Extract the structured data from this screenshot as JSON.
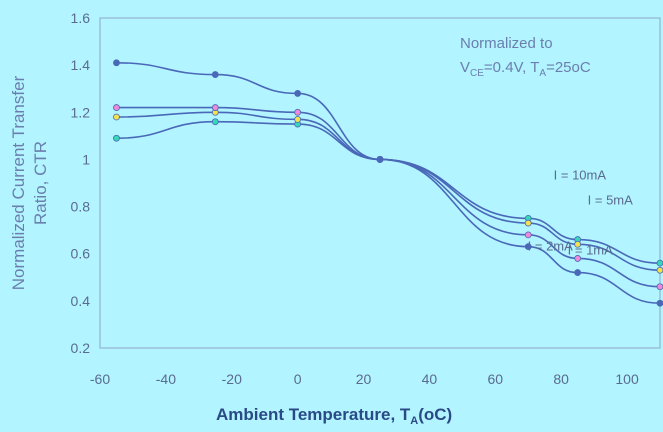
{
  "chart_data": {
    "type": "line",
    "ylabel": "Normalized Current Transfer Ratio, CTR",
    "xlabel": "Ambient Temperature, T",
    "xlabel_subscript": "A",
    "xlabel_unit": "(oC)",
    "annotation_lines": [
      "Normalized to",
      "V",
      "CE",
      "=0.4V, T",
      "A",
      "=25oC"
    ],
    "xlim": [
      -60,
      110
    ],
    "ylim": [
      0.2,
      1.6
    ],
    "x_ticks": [
      -60,
      -40,
      -20,
      0,
      20,
      40,
      60,
      80,
      100
    ],
    "x_tick_labels": [
      "-60",
      "-40",
      "-20",
      "0",
      "20",
      "40",
      "60",
      "80",
      "100"
    ],
    "y_ticks": [
      0.2,
      0.4,
      0.6,
      0.8,
      1.0,
      1.2,
      1.4,
      1.6
    ],
    "y_tick_labels": [
      "0.2",
      "0.4",
      "0.6",
      "0.8",
      "1",
      "1.2",
      "1.4",
      "1.6"
    ],
    "series": [
      {
        "name": "I = 10mA",
        "x": [
          -55,
          -25,
          0,
          25,
          70,
          85,
          110
        ],
        "y": [
          1.09,
          1.16,
          1.15,
          1.0,
          0.75,
          0.66,
          0.56
        ]
      },
      {
        "name": "I = 5mA",
        "x": [
          -55,
          -25,
          0,
          25,
          70,
          85,
          110
        ],
        "y": [
          1.18,
          1.2,
          1.17,
          1.0,
          0.73,
          0.64,
          0.53
        ]
      },
      {
        "name": "I = 2mA",
        "x": [
          -55,
          -25,
          0,
          25,
          70,
          85,
          110
        ],
        "y": [
          1.22,
          1.22,
          1.2,
          1.0,
          0.68,
          0.58,
          0.46
        ]
      },
      {
        "name": "I = 1mA",
        "x": [
          -55,
          -25,
          0,
          25,
          70,
          85,
          110
        ],
        "y": [
          1.41,
          1.36,
          1.28,
          1.0,
          0.63,
          0.52,
          0.39
        ]
      }
    ],
    "grid": false,
    "line_color": "#4a68b8"
  }
}
